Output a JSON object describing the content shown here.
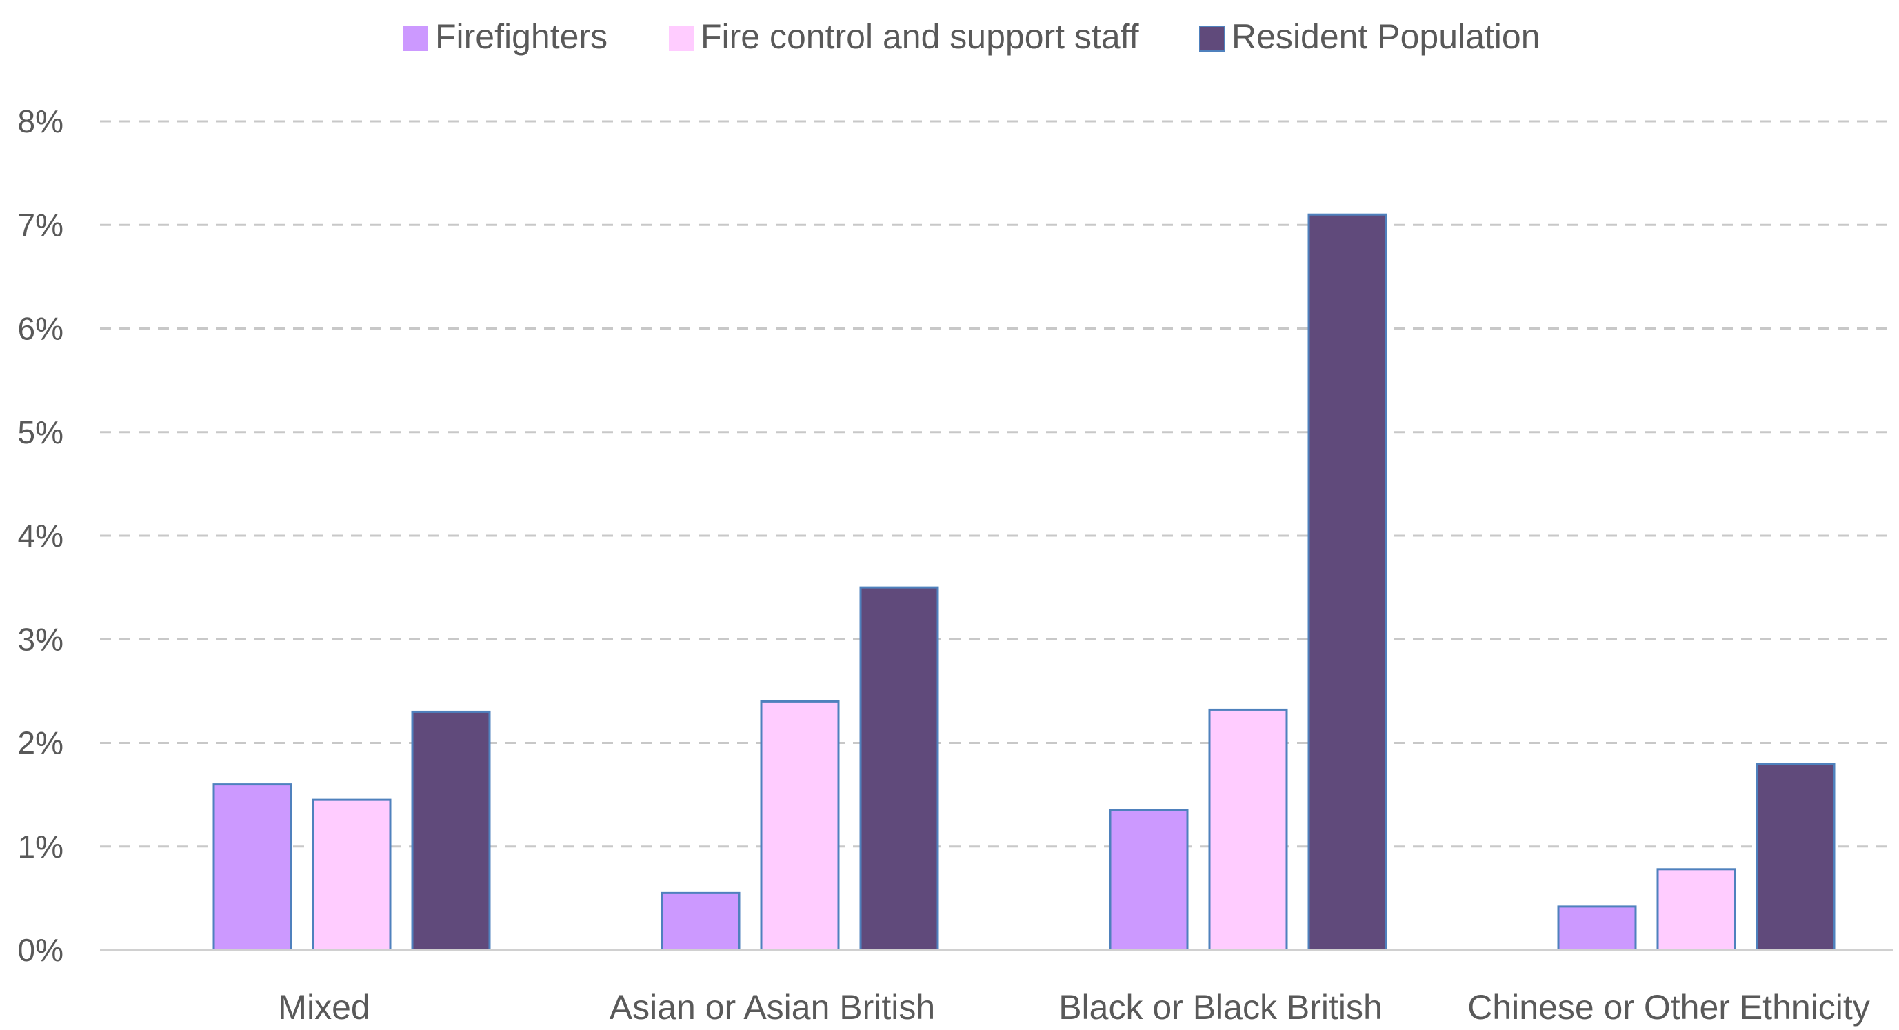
{
  "chart_data": {
    "type": "bar",
    "categories": [
      "Mixed",
      "Asian or Asian British",
      "Black or Black British",
      "Chinese or Other Ethnicity"
    ],
    "series": [
      {
        "name": "Firefighters",
        "color": "#cc99ff",
        "values": [
          1.6,
          0.55,
          1.35,
          0.42
        ]
      },
      {
        "name": "Fire control and support staff",
        "color": "#ffccff",
        "values": [
          1.45,
          2.4,
          2.32,
          0.78
        ]
      },
      {
        "name": "Resident Population",
        "color": "#604a7b",
        "values": [
          2.3,
          3.5,
          7.1,
          1.8
        ]
      }
    ],
    "y_ticks": [
      "0%",
      "1%",
      "2%",
      "3%",
      "4%",
      "5%",
      "6%",
      "7%",
      "8%"
    ],
    "ylim": [
      0,
      8
    ],
    "y_unit": "%",
    "grid": true,
    "grid_style": "dashed",
    "legend_position": "top-center",
    "bar_edge_color": "#4f81bd",
    "title": "",
    "xlabel": "",
    "ylabel": ""
  }
}
